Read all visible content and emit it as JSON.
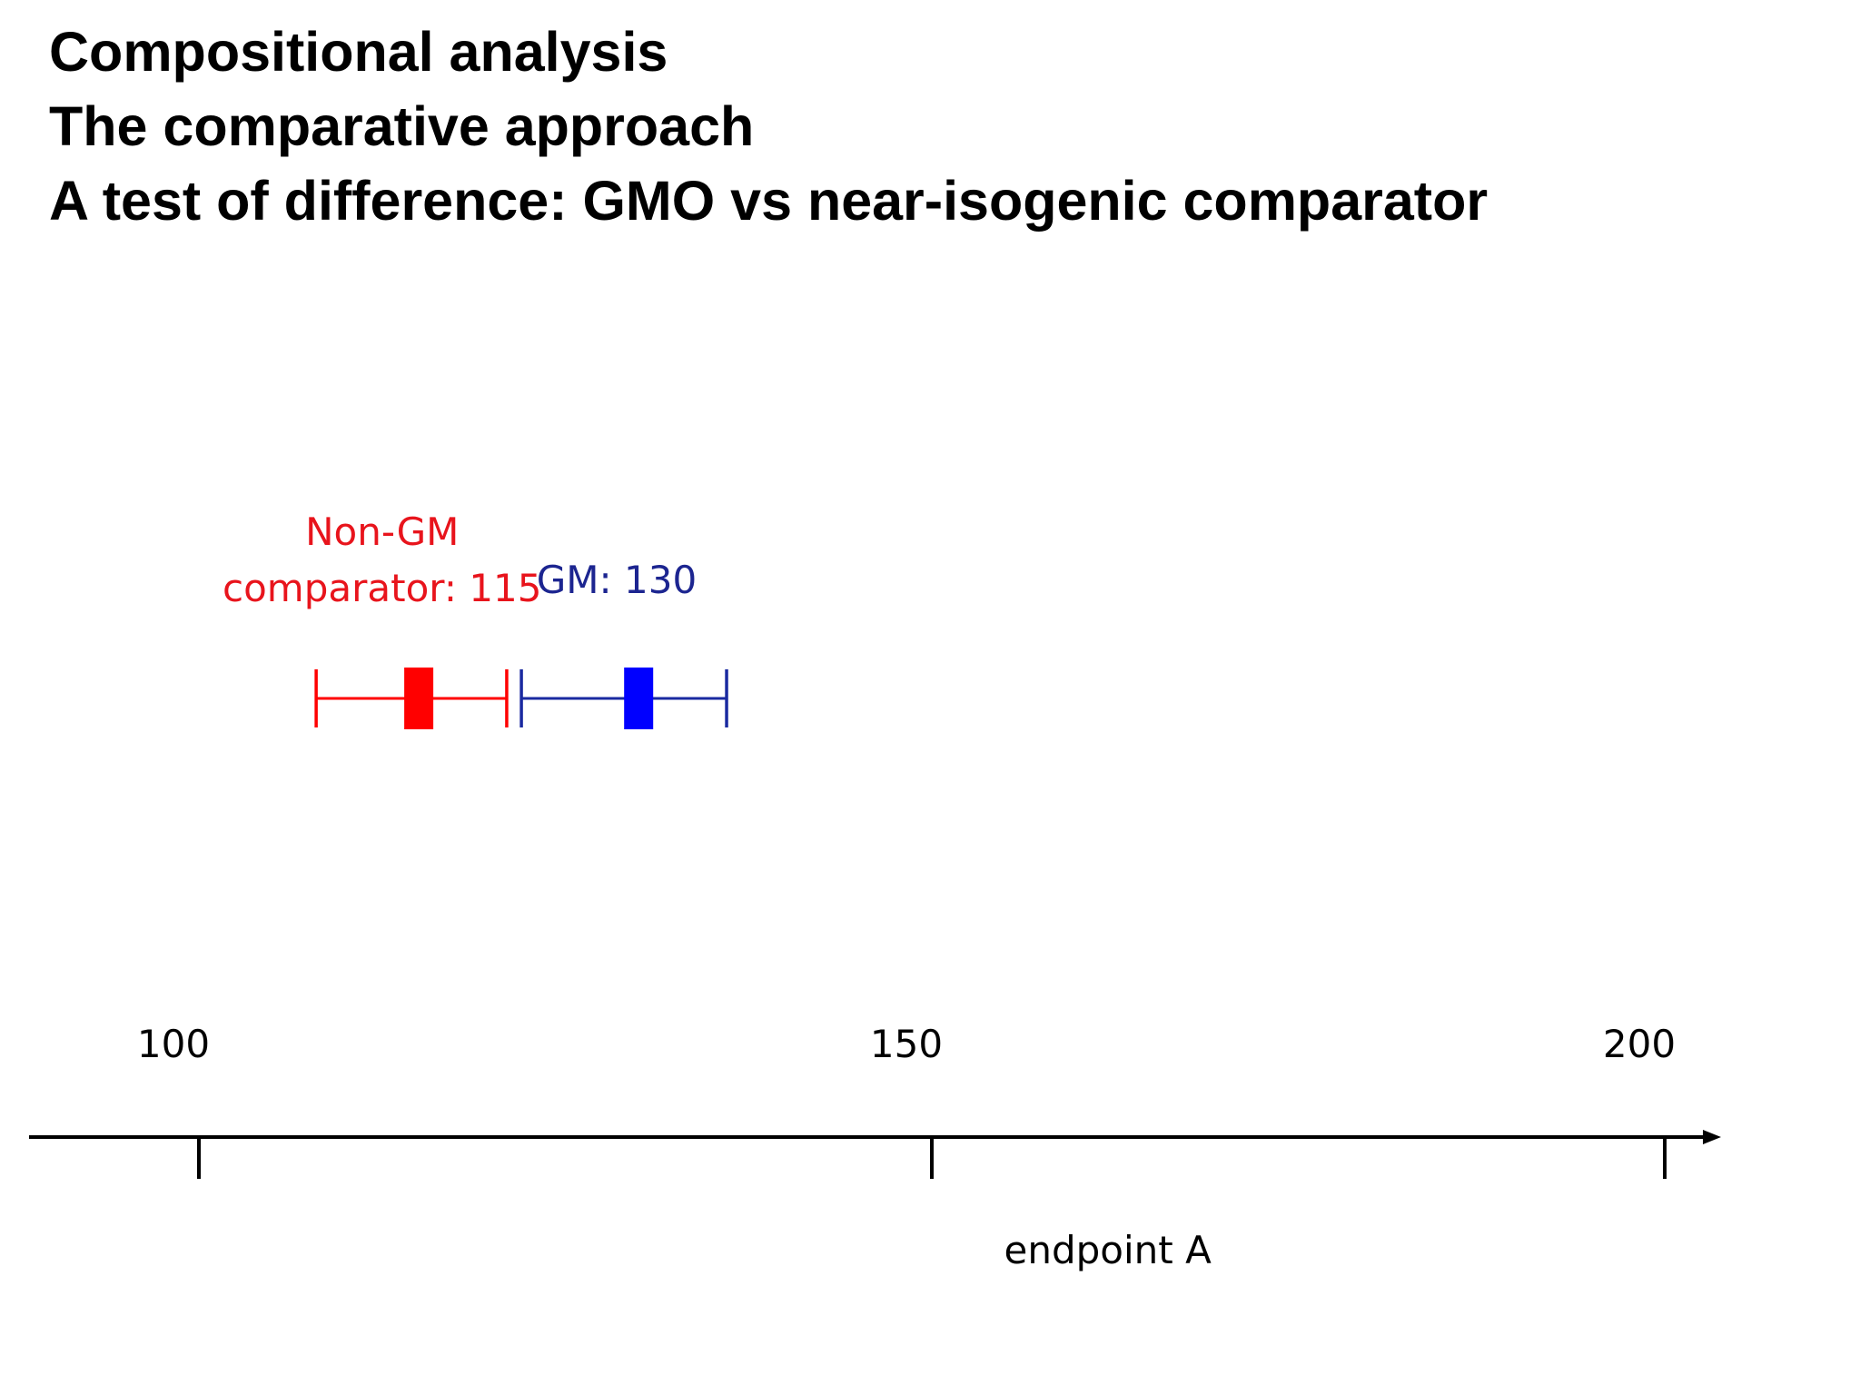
{
  "slide": {
    "title_lines": [
      "Compositional analysis",
      "The comparative approach",
      "A test of difference: GMO vs near-isogenic comparator"
    ]
  },
  "chart_data": {
    "type": "interval",
    "xlabel": "endpoint A",
    "ylabel": "",
    "x_ticks": [
      100,
      150,
      200
    ],
    "x_tick_labels": [
      "100",
      "150",
      "200"
    ],
    "xlim": [
      100,
      200
    ],
    "grid": false,
    "legend": "none",
    "series": [
      {
        "name": "Non-GM comparator",
        "label_lines": [
          "Non-GM",
          "comparator: 115"
        ],
        "value": 115,
        "low": 108,
        "high": 121,
        "color": "#ff0000",
        "label_color": "#e8141c"
      },
      {
        "name": "GM",
        "label_lines": [
          "GM: 130"
        ],
        "value": 130,
        "low": 122,
        "high": 136,
        "color": "#0000ff",
        "line_color": "#1a2aa0",
        "label_color": "#1c2590"
      }
    ],
    "axis_color": "#000000"
  }
}
